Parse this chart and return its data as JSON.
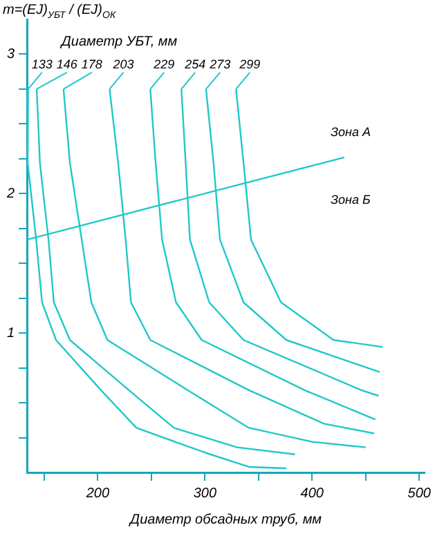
{
  "chart_data": {
    "type": "line",
    "ylabel": "m=(EJ)$_{УБТ}$ / (EJ)$_{ОК}$",
    "xlabel": "Диаметр обсадных труб, мм",
    "legend_title": "Диаметр УБТ, мм",
    "annotations": [
      "Зона А",
      "Зона Б"
    ],
    "xlim": [
      134,
      505
    ],
    "ylim": [
      0,
      3.25
    ],
    "xticks": [
      {
        "value": 150,
        "label": null
      },
      200,
      {
        "value": 250,
        "label": null
      },
      300,
      {
        "value": 350,
        "label": null
      },
      400,
      {
        "value": 450,
        "label": null
      },
      500
    ],
    "yticks": [
      {
        "value": 0.25,
        "label": null
      },
      {
        "value": 0.5,
        "label": null
      },
      {
        "value": 0.75,
        "label": null
      },
      1,
      {
        "value": 1.25,
        "label": null
      },
      {
        "value": 1.5,
        "label": null
      },
      {
        "value": 1.75,
        "label": null
      },
      2,
      {
        "value": 2.25,
        "label": null
      },
      {
        "value": 2.5,
        "label": null
      },
      {
        "value": 2.75,
        "label": null
      },
      3
    ],
    "grid": false,
    "legend": false,
    "marker": "none",
    "line_style": "solid",
    "series": [
      {
        "name": "133",
        "color": "#20c8c8",
        "x": [
          135,
          134.6,
          142.5,
          148,
          161,
          203,
          236,
          301,
          341,
          376
        ],
        "values": [
          2.75,
          2.22,
          1.67,
          1.22,
          0.95,
          0.59,
          0.32,
          0.14,
          0.04,
          0.03
        ]
      },
      {
        "name": "146",
        "color": "#20c8c8",
        "x": [
          143,
          146,
          154,
          159,
          174,
          229,
          271,
          330,
          384
        ],
        "values": [
          2.75,
          2.22,
          1.67,
          1.22,
          0.95,
          0.59,
          0.32,
          0.18,
          0.13
        ]
      },
      {
        "name": "178",
        "color": "#20c8c8",
        "x": [
          168,
          174,
          185,
          194,
          209,
          284,
          341,
          400,
          450
        ],
        "values": [
          2.75,
          2.22,
          1.67,
          1.22,
          0.95,
          0.59,
          0.32,
          0.22,
          0.18
        ]
      },
      {
        "name": "203",
        "color": "#20c8c8",
        "x": [
          211,
          219,
          226,
          231,
          249,
          341,
          411,
          458
        ],
        "values": [
          2.75,
          2.22,
          1.67,
          1.22,
          0.95,
          0.59,
          0.35,
          0.28
        ]
      },
      {
        "name": "229",
        "color": "#20c8c8",
        "x": [
          249,
          254,
          260,
          273,
          297,
          393,
          459
        ],
        "values": [
          2.75,
          2.22,
          1.67,
          1.22,
          0.95,
          0.59,
          0.38
        ]
      },
      {
        "name": "254",
        "color": "#20c8c8",
        "x": [
          278,
          282,
          286,
          304,
          336,
          446,
          462
        ],
        "values": [
          2.75,
          2.22,
          1.67,
          1.22,
          0.95,
          0.59,
          0.55
        ]
      },
      {
        "name": "273",
        "color": "#20c8c8",
        "x": [
          301,
          308,
          314,
          336,
          376,
          463
        ],
        "values": [
          2.75,
          2.22,
          1.67,
          1.22,
          0.95,
          0.72
        ]
      },
      {
        "name": "299",
        "color": "#20c8c8",
        "x": [
          329,
          336,
          343,
          371,
          420,
          466
        ],
        "values": [
          2.75,
          2.22,
          1.67,
          1.22,
          0.95,
          0.9
        ]
      },
      {
        "color": "#20c8c8",
        "x": [
          134,
          430
        ],
        "values": [
          1.67,
          2.26
        ]
      }
    ]
  }
}
